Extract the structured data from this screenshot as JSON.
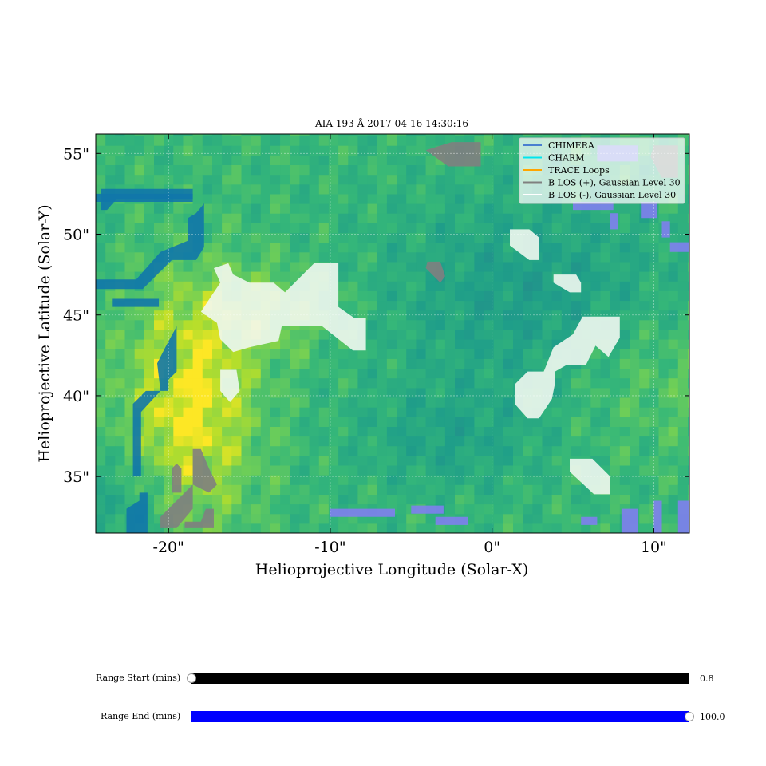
{
  "figure": {
    "title": "AIA 193 Å 2017-04-16 14:30:16",
    "xlabel": "Helioprojective Longitude (Solar-X)",
    "ylabel": "Helioprojective Latitude (Solar-Y)"
  },
  "chart_data": {
    "type": "heatmap",
    "title": "AIA 193 Å 2017-04-16 14:30:16",
    "xlabel": "Helioprojective Longitude (Solar-X)",
    "ylabel": "Helioprojective Latitude (Solar-Y)",
    "xlim": [
      -24.5,
      12.2
    ],
    "ylim": [
      31.5,
      56.2
    ],
    "xticks": [
      -20,
      -10,
      0,
      10
    ],
    "xtick_labels": [
      "-20\"",
      "-10\"",
      "0\"",
      "10\""
    ],
    "yticks": [
      35,
      40,
      45,
      50,
      55
    ],
    "ytick_labels": [
      "35\"",
      "40\"",
      "45\"",
      "50\"",
      "55\""
    ],
    "grid": true,
    "legend_position": "top-right",
    "legend": [
      {
        "label": "CHIMERA",
        "color": "#4a7fd0"
      },
      {
        "label": "CHARM",
        "color": "#00e5ee"
      },
      {
        "label": "TRACE Loops",
        "color": "#ffa500"
      },
      {
        "label": "B LOS (+), Gaussian Level 30",
        "color": "#808080"
      },
      {
        "label": "B LOS (-), Gaussian Level 30",
        "color": "#ffffff"
      }
    ],
    "colormap": "viridis"
  },
  "sliders": [
    {
      "label": "Range Start (mins)",
      "value": "0.8",
      "fraction": 0.0,
      "color": "#000000"
    },
    {
      "label": "Range End (mins)",
      "value": "100.0",
      "fraction": 1.0,
      "color": "#0000ff"
    }
  ]
}
